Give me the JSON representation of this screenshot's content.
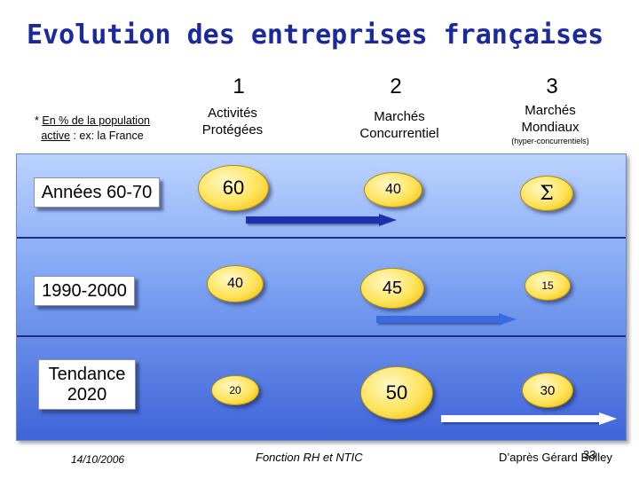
{
  "title": "Evolution des entreprises françaises",
  "population_note": {
    "prefix": "* ",
    "underlined1": "En % de la population",
    "underlined2": "active",
    "suffix": " : ex:  la France"
  },
  "columns": [
    {
      "number": "1",
      "heading_line1": "Activités",
      "heading_line2": "Protégées",
      "note": ""
    },
    {
      "number": "2",
      "heading_line1": "Marchés",
      "heading_line2": "Concurrentiel",
      "note": ""
    },
    {
      "number": "3",
      "heading_line1": "Marchés",
      "heading_line2": "Mondiaux",
      "note": "(hyper-concurrentiels)"
    }
  ],
  "rows": [
    {
      "label_line1": "Années 60-70",
      "label_line2": "",
      "values": [
        "60",
        "40",
        "Σ"
      ]
    },
    {
      "label_line1": "1990-2000",
      "label_line2": "",
      "values": [
        "40",
        "45",
        "15"
      ]
    },
    {
      "label_line1": "Tendance",
      "label_line2": "2020",
      "values": [
        "20",
        "50",
        "30"
      ]
    }
  ],
  "colors": {
    "title": "#1a2a9c",
    "panel_top": "#bcd3ff",
    "panel_bottom": "#3f64d8",
    "oval": "#ffe35a",
    "arrow_row1": "#1f2fb0",
    "arrow_row2": "#3a6be0",
    "arrow_row3": "#ffffff"
  },
  "footer": {
    "date": "14/10/2006",
    "center": "Fonction RH et NTIC",
    "credit": "D’après Gérard Bolley",
    "page": "33"
  }
}
